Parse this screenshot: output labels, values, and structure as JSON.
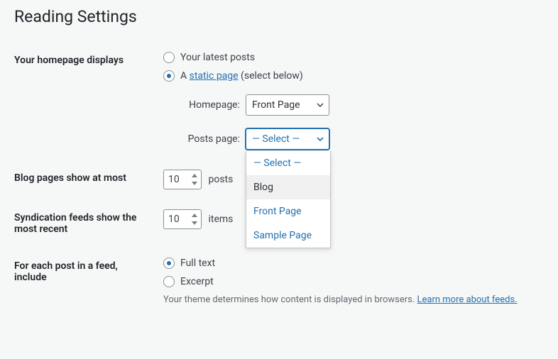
{
  "page_title": "Reading Settings",
  "homepage_displays": {
    "label": "Your homepage displays",
    "option_latest": "Your latest posts",
    "option_static_prefix": "A ",
    "option_static_link": "static page",
    "option_static_suffix": " (select below)",
    "selected": "static",
    "homepage_label": "Homepage:",
    "homepage_value": "Front Page",
    "posts_page_label": "Posts page:",
    "posts_page_value": "— Select —",
    "dropdown_options": [
      "— Select —",
      "Blog",
      "Front Page",
      "Sample Page"
    ],
    "dropdown_hover_index": 1
  },
  "blog_pages": {
    "label": "Blog pages show at most",
    "value": "10",
    "suffix": "posts"
  },
  "syndication": {
    "label": "Syndication feeds show the most recent",
    "value": "10",
    "suffix": "items"
  },
  "feed_include": {
    "label": "For each post in a feed, include",
    "option_full": "Full text",
    "option_excerpt": "Excerpt",
    "selected": "full",
    "description_text": "Your theme determines how content is displayed in browsers. ",
    "description_link": "Learn more about feeds."
  },
  "colors": {
    "link": "#2271b1",
    "text": "#3c434a",
    "border": "#8c8f94",
    "bg": "#f6f7f7"
  }
}
